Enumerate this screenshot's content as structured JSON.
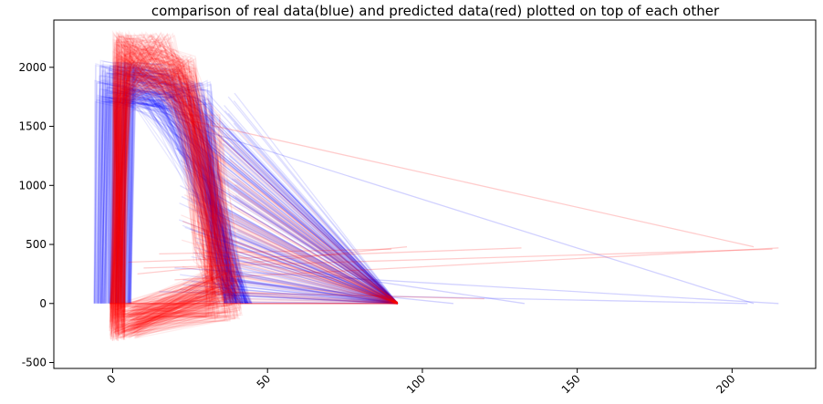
{
  "chart_data": {
    "type": "line",
    "title": "comparison of real data(blue) and predicted data(red) plotted on top of each other",
    "xlabel": "",
    "ylabel": "",
    "xlim": [
      -19,
      227
    ],
    "ylim": [
      -550,
      2400
    ],
    "x_ticks": [
      0,
      50,
      100,
      150,
      200
    ],
    "y_ticks": [
      -500,
      0,
      500,
      1000,
      1500,
      2000
    ],
    "x_tick_rotation": 45,
    "grid": false,
    "legend": "none",
    "series": [
      {
        "color": "#0000ff",
        "alpha": 0.1,
        "description_points": [
          [
            -5,
            0
          ],
          [
            -3,
            2050
          ],
          [
            5,
            2050
          ],
          [
            25,
            2050
          ],
          [
            30,
            1750
          ],
          [
            35,
            1300
          ],
          [
            38,
            600
          ],
          [
            92,
            0
          ],
          [
            205,
            0
          ],
          [
            215,
            0
          ],
          [
            -5,
            0
          ]
        ]
      },
      {
        "color": "#ff0000",
        "alpha": 0.1,
        "description_points": [
          [
            -6,
            0
          ],
          [
            -2,
            2200
          ],
          [
            10,
            2300
          ],
          [
            25,
            2100
          ],
          [
            35,
            1500
          ],
          [
            42,
            400
          ],
          [
            92,
            0
          ],
          [
            213,
            460
          ],
          [
            -1,
            -300
          ],
          [
            -6,
            0
          ]
        ]
      }
    ]
  }
}
